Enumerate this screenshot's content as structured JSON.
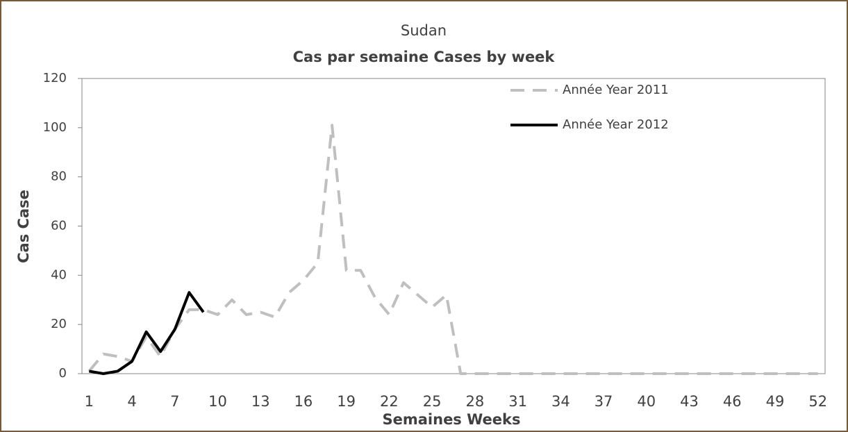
{
  "chart_data": {
    "type": "line",
    "title": "Sudan",
    "subtitle": "Cas par semaine Cases by week",
    "x_label": "Semaines Weeks",
    "y_label": "Cas Case",
    "x": [
      1,
      2,
      3,
      4,
      5,
      6,
      7,
      8,
      9,
      10,
      11,
      12,
      13,
      14,
      15,
      16,
      17,
      18,
      19,
      20,
      21,
      22,
      23,
      24,
      25,
      26,
      27,
      28,
      29,
      30,
      31,
      32,
      33,
      34,
      35,
      36,
      37,
      38,
      39,
      40,
      41,
      42,
      43,
      44,
      45,
      46,
      47,
      48,
      49,
      50,
      51,
      52
    ],
    "xlim": [
      0.5,
      52.5
    ],
    "xticks": [
      1,
      4,
      7,
      10,
      13,
      16,
      19,
      22,
      25,
      28,
      31,
      34,
      37,
      40,
      43,
      46,
      49,
      52
    ],
    "ylim": [
      0,
      120
    ],
    "yticks": [
      0,
      20,
      40,
      60,
      80,
      100,
      120
    ],
    "grid": false,
    "legend": "upper right",
    "series": [
      {
        "name": "Année Year 2011",
        "color": "#bfbfbf",
        "dash": true,
        "values": [
          1,
          8,
          7,
          5,
          15,
          7,
          18,
          26,
          26,
          24,
          30,
          24,
          25,
          23,
          33,
          38,
          45,
          101,
          42,
          42,
          31,
          24,
          37,
          32,
          27,
          32,
          0,
          0,
          0,
          0,
          0,
          0,
          0,
          0,
          0,
          0,
          0,
          0,
          0,
          0,
          0,
          0,
          0,
          0,
          0,
          0,
          0,
          0,
          0,
          0,
          0,
          0
        ]
      },
      {
        "name": "Année Year 2012",
        "color": "#000000",
        "dash": false,
        "values": [
          1,
          0,
          1,
          5,
          17,
          9,
          18,
          33,
          25,
          null,
          null,
          null,
          null,
          null,
          null,
          null,
          null,
          null,
          null,
          null,
          null,
          null,
          null,
          null,
          null,
          null,
          null,
          null,
          null,
          null,
          null,
          null,
          null,
          null,
          null,
          null,
          null,
          null,
          null,
          null,
          null,
          null,
          null,
          null,
          null,
          null,
          null,
          null,
          null,
          null,
          null,
          null
        ]
      }
    ]
  }
}
